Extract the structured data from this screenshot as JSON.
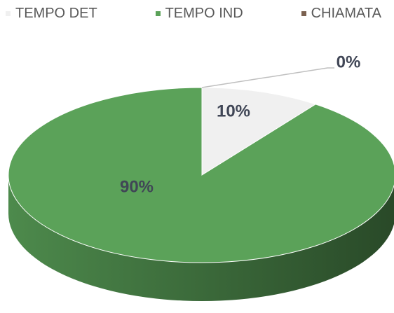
{
  "chart_data": {
    "type": "pie3d",
    "categories": [
      "TEMPO DET",
      "TEMPO IND",
      "CHIAMATA"
    ],
    "values": [
      10,
      90,
      0
    ],
    "value_labels": [
      "10%",
      "90%",
      "0%"
    ],
    "colors": [
      "#f0f0f0",
      "#5ba259",
      "#7b6150"
    ]
  }
}
